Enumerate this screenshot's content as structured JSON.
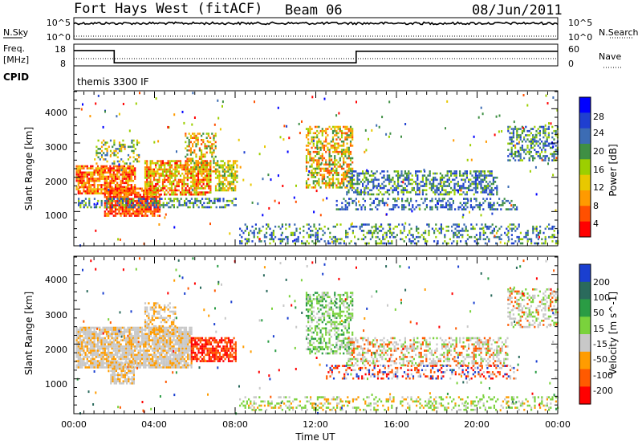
{
  "header": {
    "station": "Fort Hays West (fitACF)",
    "beam": "Beam 06",
    "date": "08/Jun/2011"
  },
  "side_labels": {
    "nsky": "N.Sky",
    "nsearch": "N.Search",
    "freq_line1": "Freq.",
    "freq_line2": "[MHz]",
    "nave": "Nave",
    "cpid": "CPID"
  },
  "cpid_text": "themis 3300 IF",
  "chart_data": [
    {
      "type": "line",
      "name": "noise",
      "series": [
        {
          "name": "N.Sky",
          "values_desc": "near 10^5 throughout"
        },
        {
          "name": "N.Search",
          "values_desc": "near 10^0 throughout"
        }
      ],
      "yticks_left": [
        "10^5",
        "10^0"
      ],
      "yticks_right": [
        "10^5",
        "10^0"
      ]
    },
    {
      "type": "line",
      "name": "frequency",
      "series": [
        {
          "name": "Freq. [MHz]",
          "segments": [
            {
              "from": 0,
              "to": 2,
              "value": 17.5
            },
            {
              "from": 2,
              "to": 14,
              "value": 9.0
            },
            {
              "from": 14,
              "to": 24,
              "value": 17.0
            }
          ]
        },
        {
          "name": "Nave",
          "value": 15
        }
      ],
      "yticks_left": [
        "18",
        "8"
      ],
      "yticks_right": [
        "60",
        "0"
      ]
    },
    {
      "type": "heatmap",
      "name": "power",
      "ylabel": "Slant Range [km]",
      "yticks": [
        "1000",
        "2000",
        "3000",
        "4000"
      ],
      "ylim": [
        0,
        4500
      ],
      "colorbar_label": "Power [dB]",
      "colorbar_ticks": [
        "28",
        "24",
        "20",
        "16",
        "12",
        "8",
        "4"
      ],
      "colors": [
        "#ff0000",
        "#ff5000",
        "#ff9a00",
        "#e8c800",
        "#9ccf00",
        "#3f8f44",
        "#3c6cb4",
        "#1f3fd0",
        "#0000ff"
      ],
      "blobs": [
        {
          "t": 0.1,
          "t2": 3.0,
          "r": 1500,
          "r2": 2350,
          "c": [
            0,
            1,
            2,
            3
          ],
          "d": 0.8
        },
        {
          "t": 1.5,
          "t2": 4.3,
          "r": 850,
          "r2": 1700,
          "c": [
            0,
            1,
            2
          ],
          "d": 0.8
        },
        {
          "t": 3.5,
          "t2": 6.8,
          "r": 1500,
          "r2": 2500,
          "c": [
            0,
            1,
            2,
            3,
            4
          ],
          "d": 0.75
        },
        {
          "t": 5.5,
          "t2": 7.0,
          "r": 2200,
          "r2": 3300,
          "c": [
            1,
            2,
            3,
            4,
            5
          ],
          "d": 0.45
        },
        {
          "t": 7.0,
          "t2": 8.1,
          "r": 1600,
          "r2": 2500,
          "c": [
            2,
            3,
            4,
            5
          ],
          "d": 0.65
        },
        {
          "t": 0.2,
          "t2": 8.0,
          "r": 1100,
          "r2": 1400,
          "c": [
            4,
            5,
            6,
            7
          ],
          "d": 0.45
        },
        {
          "t": 1.0,
          "t2": 3.2,
          "r": 2400,
          "r2": 3100,
          "c": [
            2,
            3,
            4,
            5,
            6
          ],
          "d": 0.35
        },
        {
          "t": 8.2,
          "t2": 24.0,
          "r": 80,
          "r2": 650,
          "c": [
            5,
            6,
            7,
            4
          ],
          "d": 0.28
        },
        {
          "t": 11.5,
          "t2": 13.8,
          "r": 1700,
          "r2": 3500,
          "c": [
            1,
            2,
            3,
            4,
            5
          ],
          "d": 0.55
        },
        {
          "t": 13.5,
          "t2": 21.0,
          "r": 1500,
          "r2": 2200,
          "c": [
            5,
            6,
            7,
            4
          ],
          "d": 0.5
        },
        {
          "t": 13.0,
          "t2": 22.0,
          "r": 1050,
          "r2": 1400,
          "c": [
            6,
            7,
            5
          ],
          "d": 0.35
        },
        {
          "t": 21.5,
          "t2": 24.0,
          "r": 2500,
          "r2": 3500,
          "c": [
            4,
            5,
            6,
            7
          ],
          "d": 0.45
        }
      ]
    },
    {
      "type": "heatmap",
      "name": "velocity",
      "ylabel": "Slant Range [km]",
      "yticks": [
        "1000",
        "2000",
        "3000",
        "4000"
      ],
      "ylim": [
        0,
        4500
      ],
      "colorbar_label": "Velocity [m s^-1]",
      "colorbar_ticks": [
        "200",
        "100",
        "50",
        "15",
        "-15",
        "-50",
        "-100",
        "-200"
      ],
      "colors": [
        "#ff0000",
        "#ff5a00",
        "#ff9c00",
        "#c8c8c8",
        "#7ad23c",
        "#2a9c44",
        "#2a6a5c",
        "#1a3fd0"
      ],
      "xticks": [
        "00:00",
        "04:00",
        "08:00",
        "12:00",
        "16:00",
        "20:00",
        "00:00"
      ],
      "xlabel": "Time UT",
      "blobs": [
        {
          "t": 0.1,
          "t2": 5.8,
          "r": 1300,
          "r2": 2500,
          "c": [
            3,
            3,
            3,
            2
          ],
          "d": 0.85
        },
        {
          "t": 1.8,
          "t2": 3.0,
          "r": 850,
          "r2": 1500,
          "c": [
            3,
            2,
            3
          ],
          "d": 0.8
        },
        {
          "t": 5.8,
          "t2": 8.0,
          "r": 1500,
          "r2": 2200,
          "c": [
            0,
            1,
            0,
            1
          ],
          "d": 0.75
        },
        {
          "t": 3.5,
          "t2": 5.0,
          "r": 2300,
          "r2": 3200,
          "c": [
            3,
            2
          ],
          "d": 0.4
        },
        {
          "t": 8.2,
          "t2": 24.0,
          "r": 80,
          "r2": 500,
          "c": [
            4,
            4,
            3,
            2
          ],
          "d": 0.28
        },
        {
          "t": 11.5,
          "t2": 13.8,
          "r": 1700,
          "r2": 3500,
          "c": [
            4,
            3,
            4,
            5
          ],
          "d": 0.5
        },
        {
          "t": 13.5,
          "t2": 21.5,
          "r": 1400,
          "r2": 2200,
          "c": [
            3,
            3,
            1,
            4
          ],
          "d": 0.45
        },
        {
          "t": 12.5,
          "t2": 22.0,
          "r": 1000,
          "r2": 1400,
          "c": [
            3,
            1,
            0,
            7
          ],
          "d": 0.3
        },
        {
          "t": 21.5,
          "t2": 24.0,
          "r": 2500,
          "r2": 3600,
          "c": [
            3,
            3,
            4,
            1
          ],
          "d": 0.4
        }
      ]
    }
  ]
}
